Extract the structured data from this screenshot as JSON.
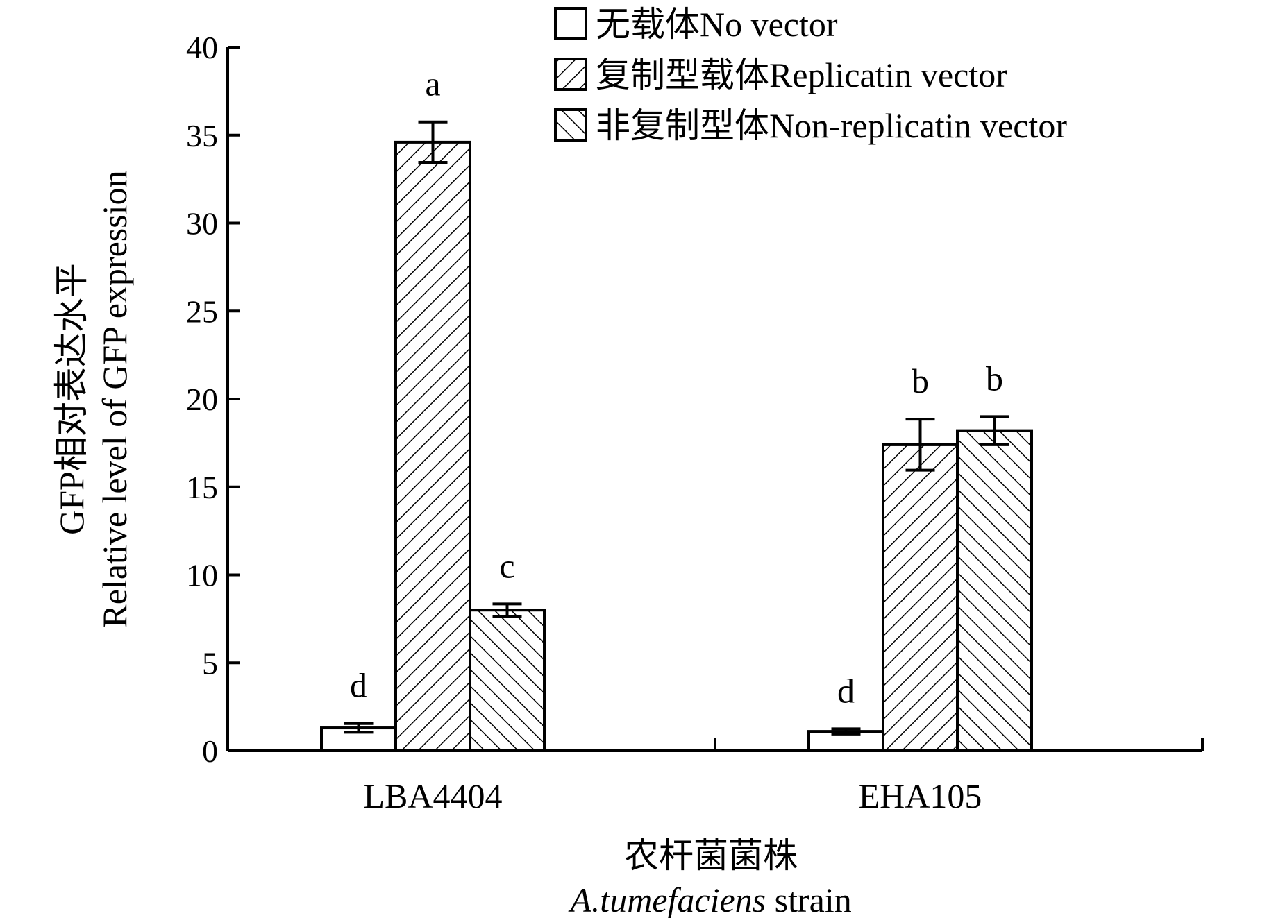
{
  "chart_data": {
    "type": "bar",
    "categories": [
      "LBA4404",
      "EHA105"
    ],
    "series": [
      {
        "name": "无载体No vector",
        "pattern": "none",
        "values": [
          1.3,
          1.1
        ],
        "errors": [
          0.25,
          0.15
        ],
        "sig": [
          "d",
          "d"
        ]
      },
      {
        "name": "复制型载体Replicatin vector",
        "pattern": "forward",
        "values": [
          34.6,
          17.4
        ],
        "errors": [
          1.15,
          1.45
        ],
        "sig": [
          "a",
          "b"
        ]
      },
      {
        "name": "非复制型体Non-replicatin vector",
        "pattern": "backward",
        "values": [
          8.0,
          18.2
        ],
        "errors": [
          0.35,
          0.8
        ],
        "sig": [
          "c",
          "b"
        ]
      }
    ],
    "ylim": [
      0,
      40
    ],
    "yticks": [
      0,
      5,
      10,
      15,
      20,
      25,
      30,
      35,
      40
    ],
    "ylabel": {
      "line1": "GFP相对表达水平",
      "line2": "Relative level of GFP expression"
    },
    "xlabel": {
      "line1": "农杆菌菌株",
      "line2_italic": "A.tumefaciens",
      "line2_rest": " strain"
    },
    "legend_position": "top-right",
    "grid": false
  }
}
